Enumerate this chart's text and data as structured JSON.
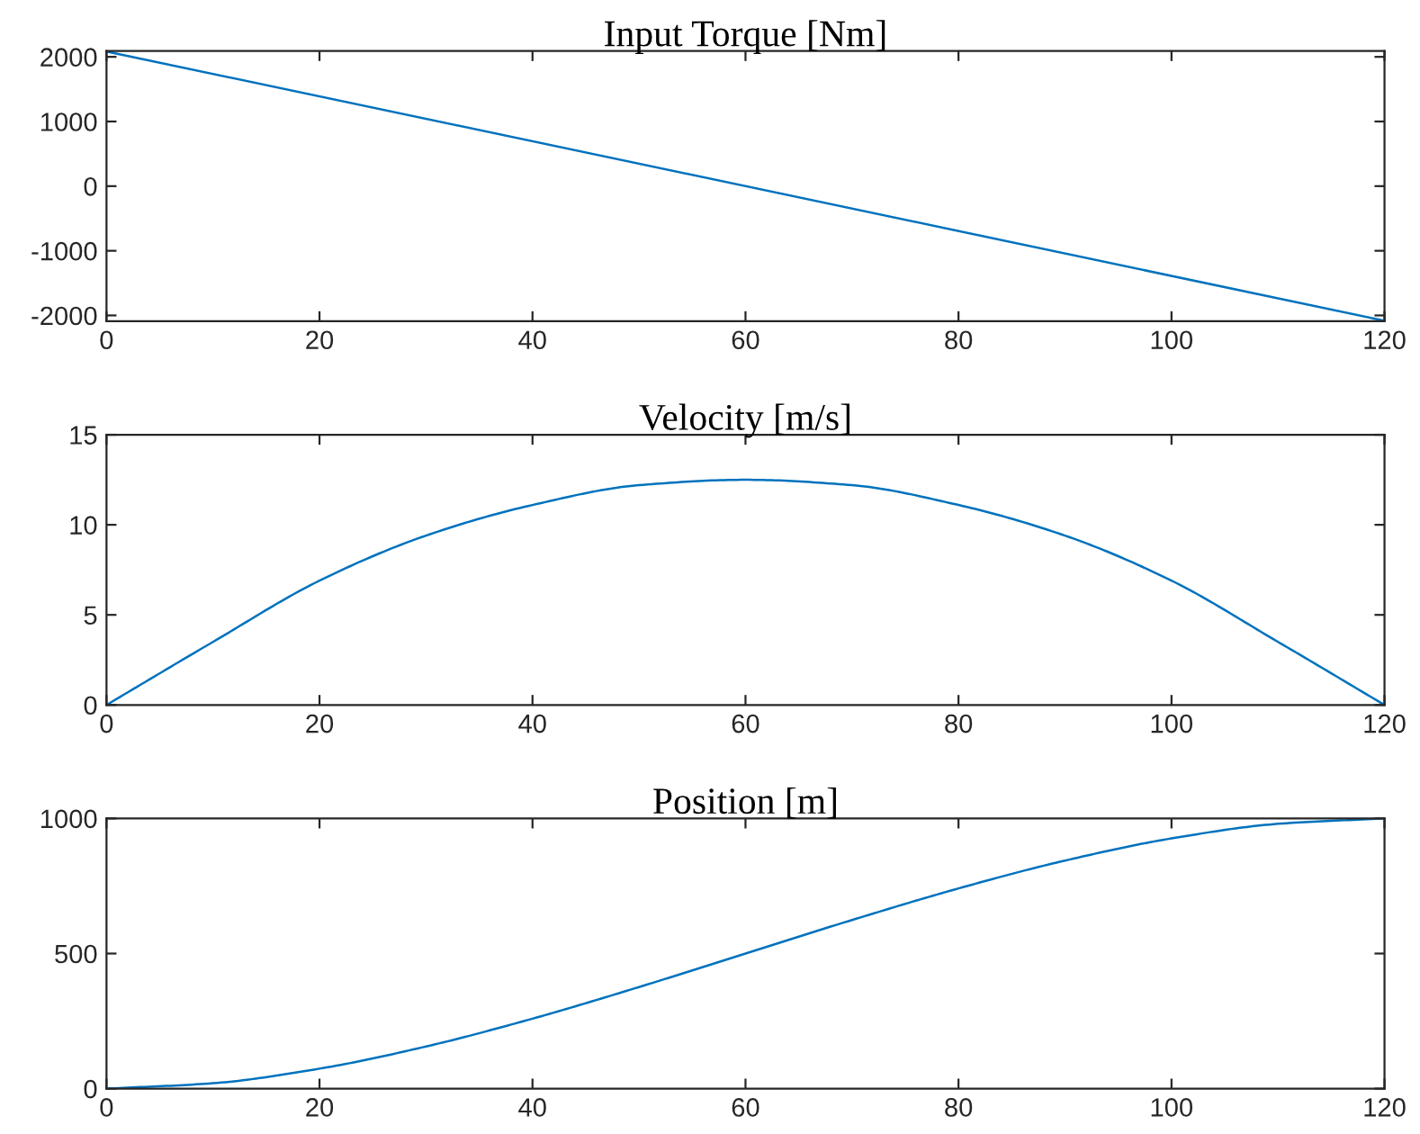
{
  "chart_data": [
    {
      "type": "line",
      "title": "Input Torque [Nm]",
      "x": [
        0,
        120
      ],
      "series": [
        {
          "color": "#0072bd",
          "values": [
            2083,
            -2083
          ]
        }
      ],
      "xlim": [
        0,
        120
      ],
      "xticks": [
        0,
        20,
        40,
        60,
        80,
        100,
        120
      ],
      "ylim": [
        -2090,
        2090
      ],
      "yticks": [
        -2000,
        -1000,
        0,
        1000,
        2000
      ],
      "grid": false,
      "legend": false
    },
    {
      "type": "line",
      "title": "Velocity [m/s]",
      "x": [
        0,
        10,
        20,
        30,
        40,
        50,
        60,
        70,
        80,
        90,
        100,
        110,
        120
      ],
      "series": [
        {
          "color": "#0072bd",
          "values": [
            0,
            3.5,
            6.9,
            9.4,
            11.1,
            12.2,
            12.5,
            12.2,
            11.1,
            9.4,
            6.9,
            3.5,
            0
          ]
        }
      ],
      "xlim": [
        0,
        120
      ],
      "xticks": [
        0,
        20,
        40,
        60,
        80,
        100,
        120
      ],
      "ylim": [
        0,
        15
      ],
      "yticks": [
        0,
        5,
        10,
        15
      ],
      "grid": false,
      "legend": false
    },
    {
      "type": "line",
      "title": "Position [m]",
      "x": [
        0,
        10,
        20,
        30,
        40,
        50,
        60,
        70,
        80,
        90,
        100,
        110,
        120
      ],
      "series": [
        {
          "color": "#0072bd",
          "values": [
            0,
            20,
            74,
            156,
            259,
            376,
            500,
            624,
            741,
            844,
            926,
            980,
            1000
          ]
        }
      ],
      "xlim": [
        0,
        120
      ],
      "xticks": [
        0,
        20,
        40,
        60,
        80,
        100,
        120
      ],
      "ylim": [
        0,
        1000
      ],
      "yticks": [
        0,
        500,
        1000
      ],
      "grid": false,
      "legend": false
    }
  ]
}
